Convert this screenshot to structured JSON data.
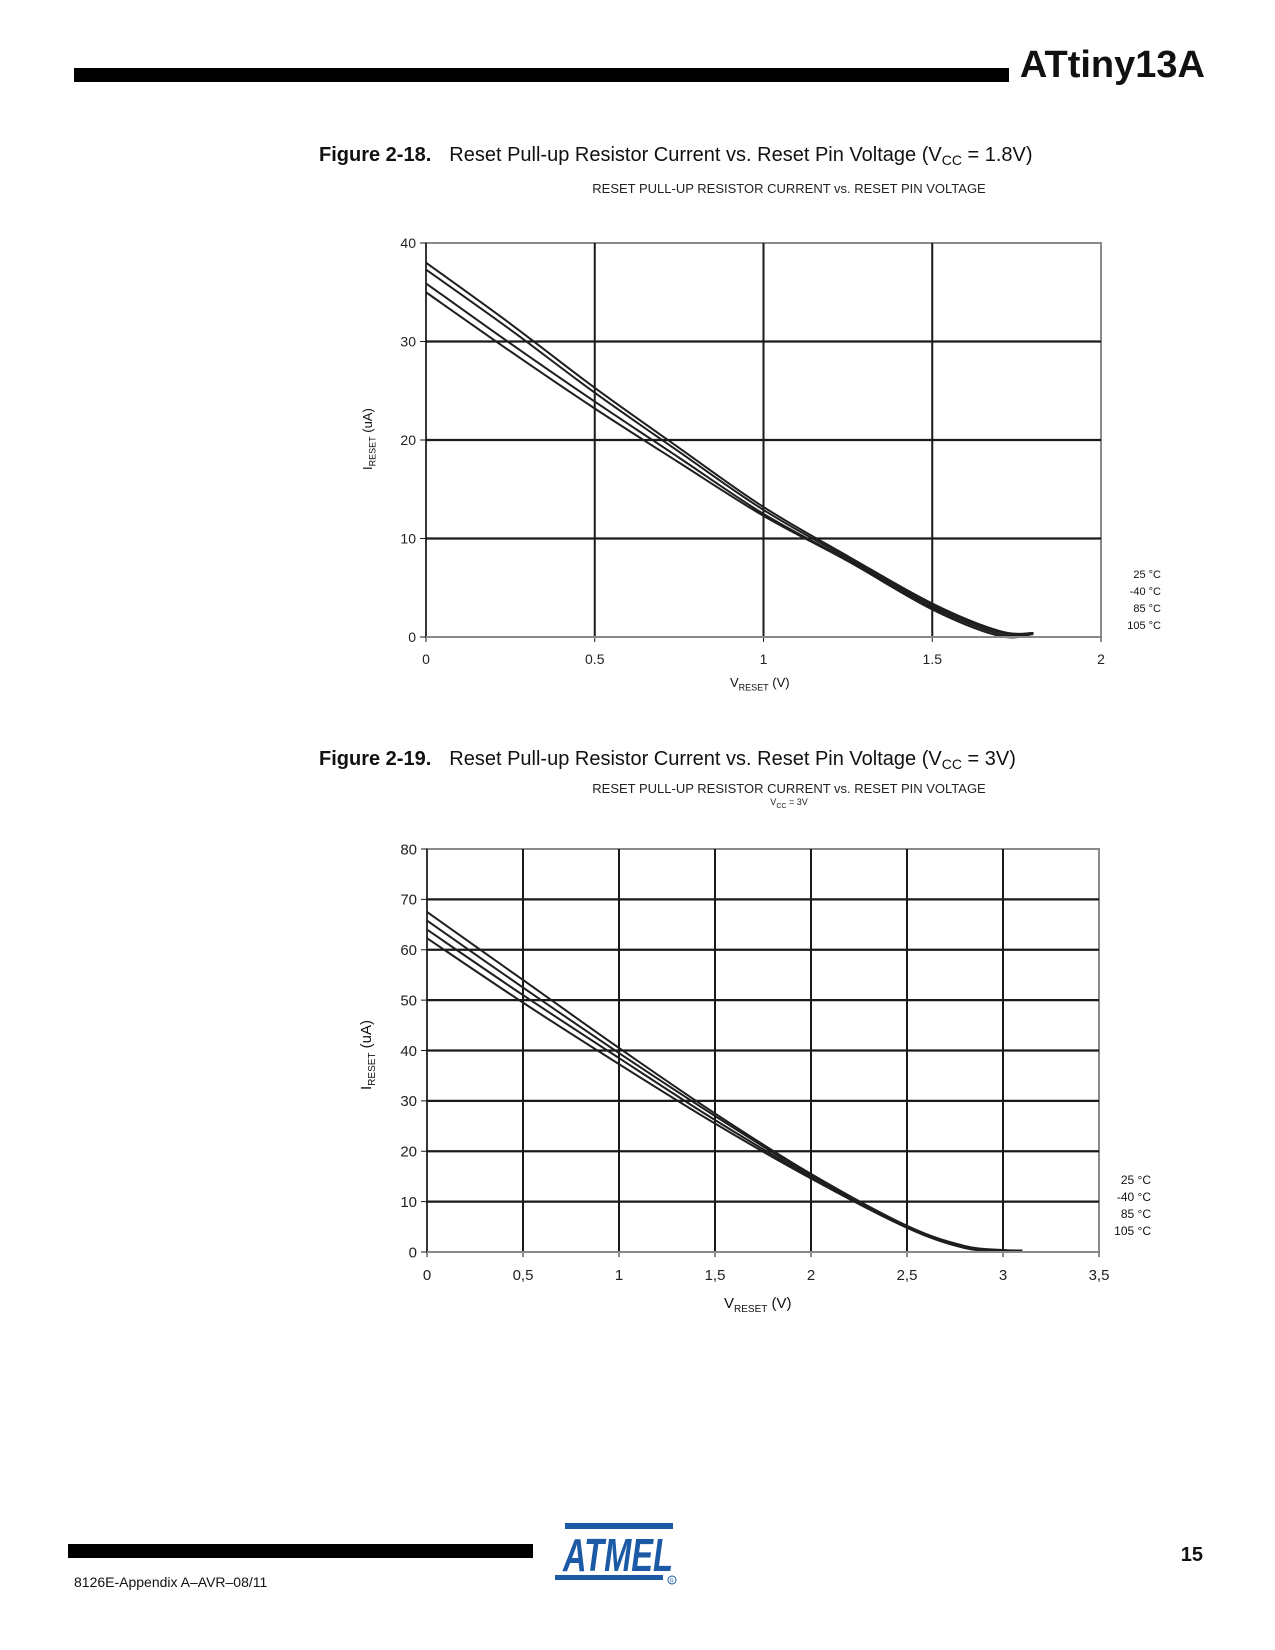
{
  "header": {
    "title": "ATtiny13A"
  },
  "figures": [
    {
      "number": "Figure 2-18.",
      "caption_main": "Reset Pull-up Resistor Current vs. Reset Pin Voltage (V",
      "caption_sub": "CC",
      "caption_end": " = 1.8V)",
      "chart_title": "RESET PULL-UP RESISTOR CURRENT vs. RESET PIN VOLTAGE",
      "chart_subtitle": "",
      "ylabel_main": "I",
      "ylabel_sub": "RESET",
      "ylabel_unit": " (uA)",
      "xlabel_main": "V",
      "xlabel_sub": "RESET",
      "xlabel_unit": " (V)",
      "x_ticks": [
        "0",
        "0.5",
        "1",
        "1.5",
        "2"
      ],
      "y_ticks": [
        "0",
        "10",
        "20",
        "30",
        "40"
      ],
      "legend": [
        "25 °C",
        "-40 °C",
        "85 °C",
        "105 °C"
      ]
    },
    {
      "number": "Figure 2-19.",
      "caption_main": "Reset Pull-up Resistor Current vs. Reset Pin Voltage (V",
      "caption_sub": "CC",
      "caption_end": " = 3V)",
      "chart_title": "RESET PULL-UP RESISTOR CURRENT vs. RESET PIN VOLTAGE",
      "chart_subtitle_main": "V",
      "chart_subtitle_sub": "CC",
      "chart_subtitle_end": " = 3V",
      "ylabel_main": "I",
      "ylabel_sub": "RESET",
      "ylabel_unit": " (uA)",
      "xlabel_main": "V",
      "xlabel_sub": "RESET",
      "xlabel_unit": " (V)",
      "x_ticks": [
        "0",
        "0,5",
        "1",
        "1,5",
        "2",
        "2,5",
        "3",
        "3,5"
      ],
      "y_ticks": [
        "0",
        "10",
        "20",
        "30",
        "40",
        "50",
        "60",
        "70",
        "80"
      ],
      "legend": [
        "25 °C",
        "-40 °C",
        "85 °C",
        "105 °C"
      ]
    }
  ],
  "footer": {
    "doc_code": "8126E-Appendix A–AVR–08/11",
    "page_number": "15",
    "logo_text": "ATMEL",
    "logo_color": "#1c5aa6"
  },
  "chart_data": [
    {
      "type": "line",
      "title": "RESET PULL-UP RESISTOR CURRENT vs. RESET PIN VOLTAGE",
      "subtitle": "Figure 2-18. Reset Pull-up Resistor Current vs. Reset Pin Voltage (VCC = 1.8V)",
      "xlabel": "VRESET (V)",
      "ylabel": "IRESET (uA)",
      "xlim": [
        0,
        2
      ],
      "ylim": [
        0,
        40
      ],
      "grid": true,
      "legend_position": "right",
      "x": [
        0,
        0.25,
        0.5,
        0.75,
        1.0,
        1.25,
        1.5,
        1.7,
        1.8
      ],
      "series": [
        {
          "name": "25 °C",
          "values": [
            38.0,
            31.8,
            25.3,
            19.2,
            13.2,
            8.2,
            3.4,
            0.6,
            0.4
          ]
        },
        {
          "name": "-40 °C",
          "values": [
            37.3,
            31.2,
            24.8,
            18.8,
            12.9,
            8.0,
            3.2,
            0.5,
            0.4
          ]
        },
        {
          "name": "85 °C",
          "values": [
            35.9,
            29.8,
            23.9,
            18.2,
            12.5,
            7.8,
            3.0,
            0.3,
            0.3
          ]
        },
        {
          "name": "105 °C",
          "values": [
            35.0,
            29.0,
            23.2,
            17.7,
            12.3,
            7.7,
            2.8,
            0.1,
            0.3
          ]
        }
      ]
    },
    {
      "type": "line",
      "title": "RESET PULL-UP RESISTOR CURRENT vs. RESET PIN VOLTAGE",
      "subtitle": "VCC = 3V",
      "xlabel": "VRESET (V)",
      "ylabel": "IRESET (uA)",
      "xlim": [
        0,
        3.5
      ],
      "ylim": [
        0,
        80
      ],
      "grid": true,
      "legend_position": "right",
      "x": [
        0,
        0.5,
        1.0,
        1.5,
        2.0,
        2.5,
        2.8,
        3.0,
        3.1
      ],
      "series": [
        {
          "name": "25 °C",
          "values": [
            67.5,
            54.0,
            40.5,
            27.5,
            15.5,
            5.2,
            1.2,
            0.4,
            0.3
          ]
        },
        {
          "name": "-40 °C",
          "values": [
            65.8,
            52.5,
            39.5,
            27.0,
            15.2,
            5.0,
            1.0,
            0.3,
            0.3
          ]
        },
        {
          "name": "85 °C",
          "values": [
            64.0,
            51.0,
            38.5,
            26.2,
            14.9,
            4.9,
            0.9,
            0.2,
            0.3
          ]
        },
        {
          "name": "105 °C",
          "values": [
            62.3,
            49.5,
            37.3,
            25.5,
            14.6,
            4.8,
            0.8,
            0.2,
            0.3
          ]
        }
      ]
    }
  ]
}
